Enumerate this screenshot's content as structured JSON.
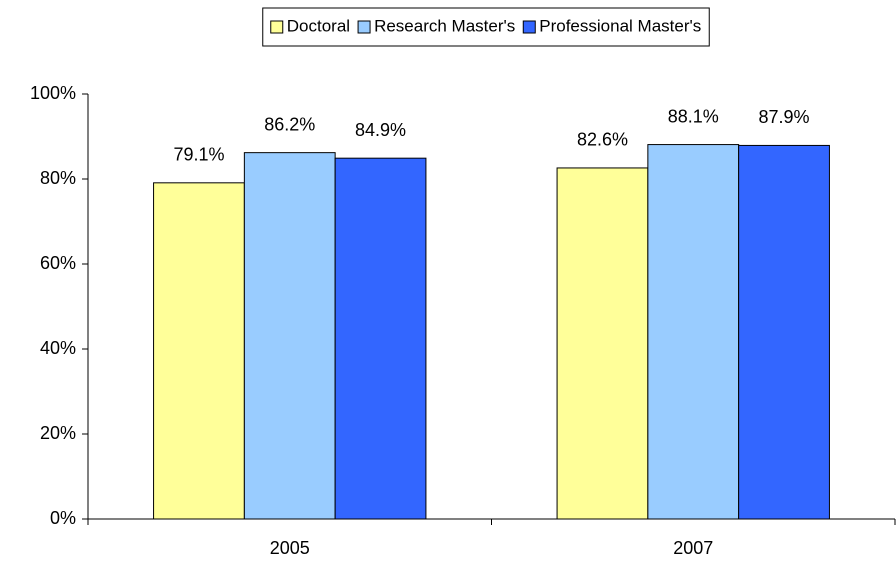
{
  "chart_data": {
    "type": "bar",
    "categories": [
      "2005",
      "2007"
    ],
    "series": [
      {
        "name": "Doctoral",
        "color": "#ffff99",
        "values": [
          79.1,
          82.6
        ],
        "value_labels": [
          "79.1%",
          "82.6%"
        ]
      },
      {
        "name": "Research Master's",
        "color": "#99ccff",
        "values": [
          86.2,
          88.1
        ],
        "value_labels": [
          "86.2%",
          "88.1%"
        ]
      },
      {
        "name": "Professional Master's",
        "color": "#3366ff",
        "values": [
          84.9,
          87.9
        ],
        "value_labels": [
          "84.9%",
          "87.9%"
        ]
      }
    ],
    "ylim": [
      0,
      100
    ],
    "yticks": [
      {
        "value": 0,
        "label": "0%"
      },
      {
        "value": 20,
        "label": "20%"
      },
      {
        "value": 40,
        "label": "40%"
      },
      {
        "value": 60,
        "label": "60%"
      },
      {
        "value": 80,
        "label": "80%"
      },
      {
        "value": 100,
        "label": "100%"
      }
    ],
    "legend": "top"
  }
}
